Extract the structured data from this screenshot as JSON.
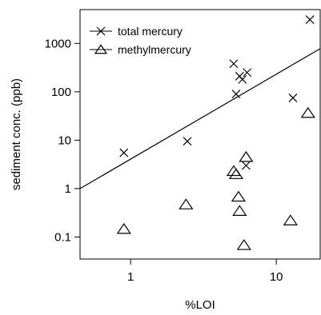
{
  "chart_data": {
    "type": "scatter",
    "xlabel": "%LOI",
    "ylabel": "sediment conc. (ppb)",
    "x_scale": "log",
    "y_scale": "log",
    "xlim": [
      0.45,
      20
    ],
    "ylim": [
      0.035,
      5000
    ],
    "x_ticks": [
      {
        "value": 1,
        "label": "1"
      },
      {
        "value": 10,
        "label": "10"
      }
    ],
    "y_ticks": [
      {
        "value": 0.1,
        "label": "0.1"
      },
      {
        "value": 1,
        "label": "1"
      },
      {
        "value": 10,
        "label": "10"
      },
      {
        "value": 100,
        "label": "100"
      },
      {
        "value": 1000,
        "label": "1000"
      }
    ],
    "legend_position": "top-left",
    "series": [
      {
        "name": "total mercury",
        "marker": "x",
        "points": [
          {
            "x": 0.9,
            "y": 5.5
          },
          {
            "x": 2.45,
            "y": 9.5
          },
          {
            "x": 5.1,
            "y": 380
          },
          {
            "x": 5.3,
            "y": 90
          },
          {
            "x": 5.6,
            "y": 210
          },
          {
            "x": 5.85,
            "y": 180
          },
          {
            "x": 6.3,
            "y": 250
          },
          {
            "x": 6.2,
            "y": 3
          },
          {
            "x": 13.0,
            "y": 75
          },
          {
            "x": 17.0,
            "y": 3100
          }
        ]
      },
      {
        "name": "methylmercury",
        "marker": "triangle",
        "points": [
          {
            "x": 0.9,
            "y": 0.14
          },
          {
            "x": 2.4,
            "y": 0.45
          },
          {
            "x": 5.1,
            "y": 2.2
          },
          {
            "x": 5.3,
            "y": 1.9
          },
          {
            "x": 5.5,
            "y": 0.65
          },
          {
            "x": 5.6,
            "y": 0.33
          },
          {
            "x": 6.2,
            "y": 4.3
          },
          {
            "x": 6.0,
            "y": 0.065
          },
          {
            "x": 12.5,
            "y": 0.21
          },
          {
            "x": 16.5,
            "y": 35
          }
        ]
      }
    ],
    "fit_line": {
      "series": "total mercury",
      "start": {
        "x": 0.45,
        "y": 1.0
      },
      "end": {
        "x": 20,
        "y": 780
      }
    }
  }
}
